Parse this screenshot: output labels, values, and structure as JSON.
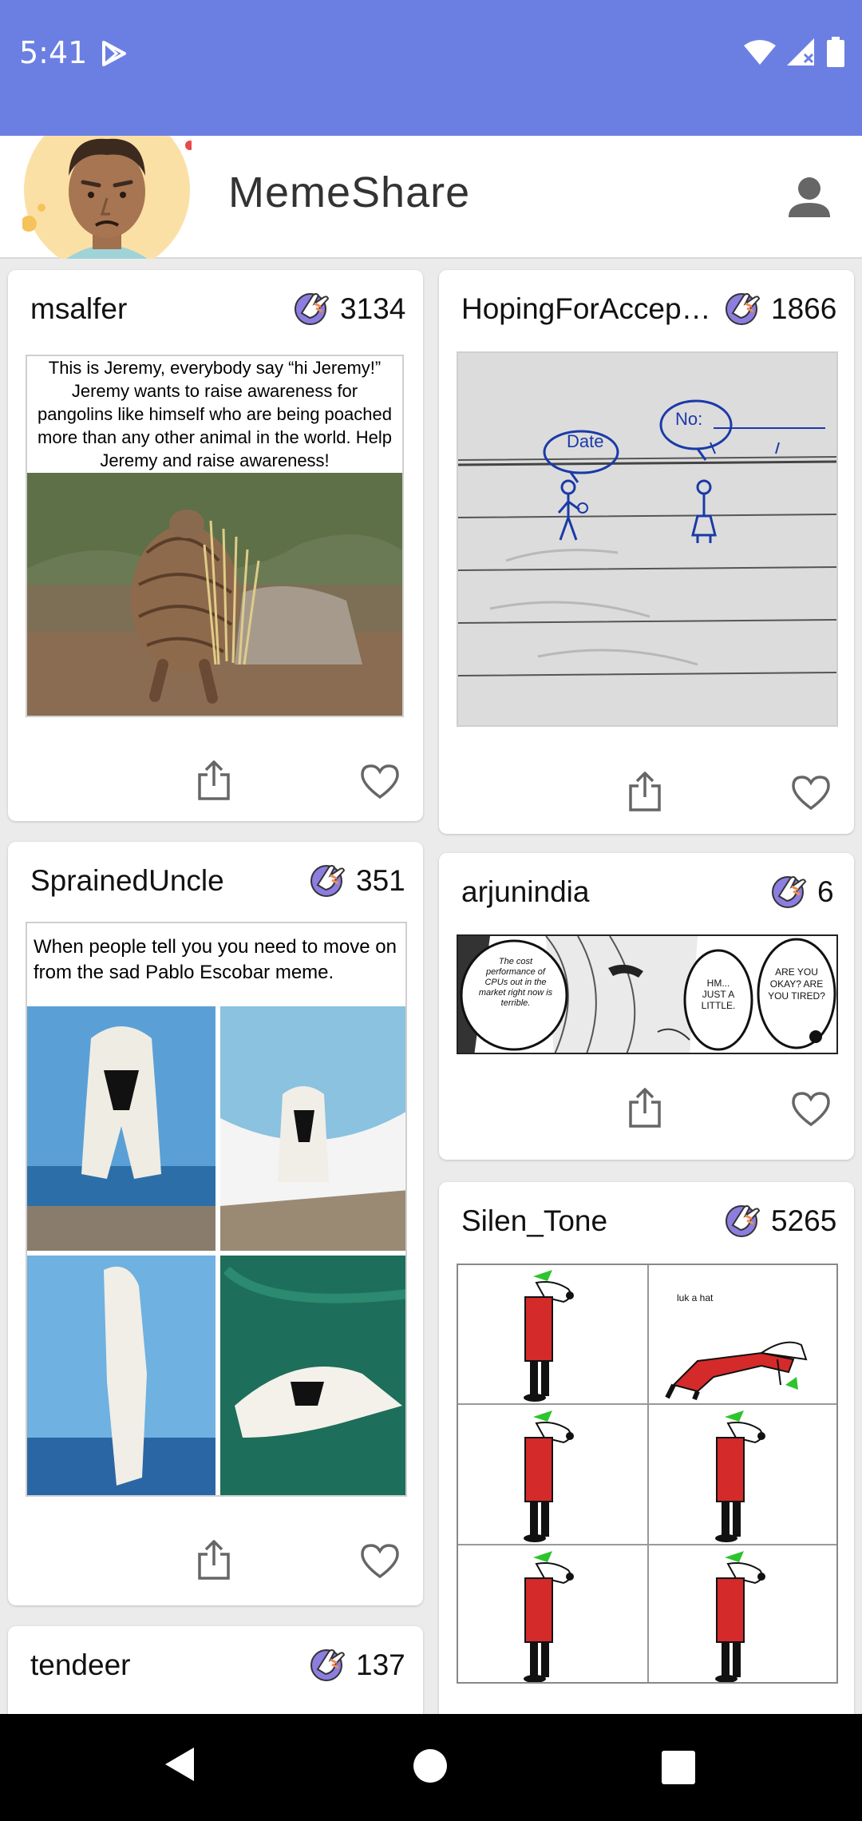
{
  "status_bar": {
    "time": "5:41"
  },
  "app_bar": {
    "title": "MemeShare"
  },
  "cards": [
    {
      "user": "msalfer",
      "count": "3134",
      "caption": "This is Jeremy, everybody say “hi Jeremy!” Jeremy wants to raise awareness for pangolins like himself who are being poached more than any other animal in the world. Help Jeremy and raise awareness!"
    },
    {
      "user": "HopingForAccep…",
      "count": "1866",
      "note_date": "Date",
      "note_no": "No:"
    },
    {
      "user": "SprainedUncle",
      "count": "351",
      "caption": "When people tell you you need to move on from the sad Pablo Escobar meme."
    },
    {
      "user": "arjunindia",
      "count": "6",
      "bubble1": "The cost performance of CPUs out in the market right now is terrible.",
      "bubble2": "HM... JUST A LITTLE.",
      "bubble3": "ARE YOU OKAY? ARE YOU TIRED?"
    },
    {
      "user": "Silen_Tone",
      "count": "5265",
      "comic_text": "luk a hat"
    },
    {
      "user": "tendeer",
      "count": "137"
    }
  ],
  "colors": {
    "status_bar": "#6b7fe3",
    "accent_red": "#d62c2c"
  }
}
